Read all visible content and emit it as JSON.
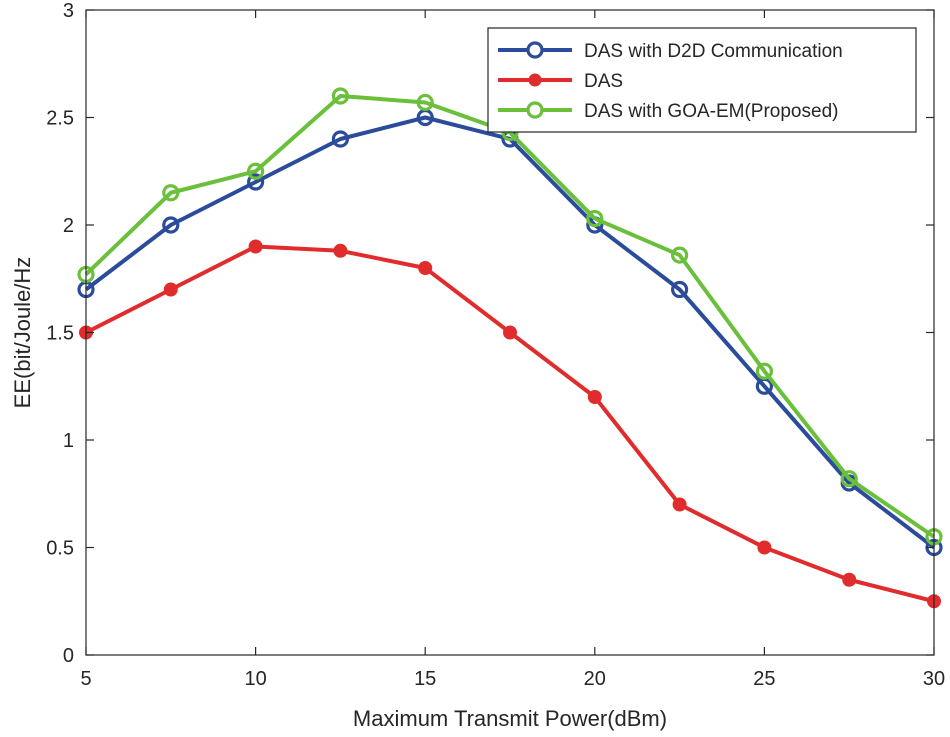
{
  "chart_data": {
    "type": "line",
    "title": "",
    "xlabel": "Maximum Transmit Power(dBm)",
    "ylabel": "EE(bit/Joule/Hz",
    "xlim": [
      5,
      30
    ],
    "ylim": [
      0,
      3
    ],
    "xticks": [
      5,
      10,
      15,
      20,
      25,
      30
    ],
    "yticks": [
      0,
      0.5,
      1,
      1.5,
      2,
      2.5,
      3
    ],
    "xtick_labels": [
      "5",
      "10",
      "15",
      "20",
      "25",
      "30"
    ],
    "ytick_labels": [
      "0",
      "0.5",
      "1",
      "1.5",
      "2",
      "2.5",
      "3"
    ],
    "grid": false,
    "legend_position": "top-right",
    "x": [
      5,
      7.5,
      10,
      12.5,
      15,
      17.5,
      20,
      22.5,
      25,
      27.5,
      30
    ],
    "series": [
      {
        "name": "DAS with D2D Communication",
        "color": "#2b4c9b",
        "marker": "open-circle",
        "values": [
          1.7,
          2.0,
          2.2,
          2.4,
          2.5,
          2.4,
          2.0,
          1.7,
          1.25,
          0.8,
          0.5
        ]
      },
      {
        "name": "DAS",
        "color": "#e02c2c",
        "marker": "filled-circle",
        "values": [
          1.5,
          1.7,
          1.9,
          1.88,
          1.8,
          1.5,
          1.2,
          0.7,
          0.5,
          0.35,
          0.25
        ]
      },
      {
        "name": "DAS with GOA-EM(Proposed)",
        "color": "#6abf3b",
        "marker": "open-circle",
        "values": [
          1.77,
          2.15,
          2.25,
          2.6,
          2.57,
          2.43,
          2.03,
          1.86,
          1.32,
          0.82,
          0.55
        ]
      }
    ]
  }
}
